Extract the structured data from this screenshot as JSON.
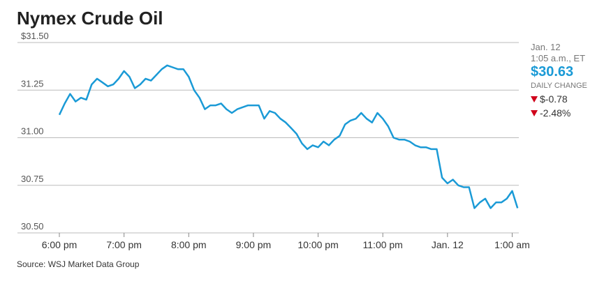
{
  "chart_data": {
    "type": "line",
    "title": "Nymex Crude Oil",
    "source": "Source: WSJ Market Data Group",
    "x": [
      "6:00 pm",
      "6:05 pm",
      "6:10 pm",
      "6:15 pm",
      "6:20 pm",
      "6:25 pm",
      "6:30 pm",
      "6:35 pm",
      "6:40 pm",
      "6:45 pm",
      "6:50 pm",
      "6:55 pm",
      "7:00 pm",
      "7:05 pm",
      "7:10 pm",
      "7:15 pm",
      "7:20 pm",
      "7:25 pm",
      "7:30 pm",
      "7:35 pm",
      "7:40 pm",
      "7:45 pm",
      "7:50 pm",
      "7:55 pm",
      "8:00 pm",
      "8:05 pm",
      "8:10 pm",
      "8:15 pm",
      "8:20 pm",
      "8:25 pm",
      "8:30 pm",
      "8:35 pm",
      "8:40 pm",
      "8:45 pm",
      "8:50 pm",
      "8:55 pm",
      "9:00 pm",
      "9:05 pm",
      "9:10 pm",
      "9:15 pm",
      "9:20 pm",
      "9:25 pm",
      "9:30 pm",
      "9:35 pm",
      "9:40 pm",
      "9:45 pm",
      "9:50 pm",
      "9:55 pm",
      "10:00 pm",
      "10:05 pm",
      "10:10 pm",
      "10:15 pm",
      "10:20 pm",
      "10:25 pm",
      "10:30 pm",
      "10:35 pm",
      "10:40 pm",
      "10:45 pm",
      "10:50 pm",
      "10:55 pm",
      "11:00 pm",
      "11:05 pm",
      "11:10 pm",
      "11:15 pm",
      "11:20 pm",
      "11:25 pm",
      "11:30 pm",
      "11:35 pm",
      "11:40 pm",
      "11:45 pm",
      "11:50 pm",
      "11:55 pm",
      "12:00 am",
      "12:05 am",
      "12:10 am",
      "12:15 am",
      "12:20 am",
      "12:25 am",
      "12:30 am",
      "12:35 am",
      "12:40 am",
      "12:45 am",
      "12:50 am",
      "12:55 am",
      "1:00 am",
      "1:05 am"
    ],
    "values": [
      31.12,
      31.18,
      31.23,
      31.19,
      31.21,
      31.2,
      31.28,
      31.31,
      31.29,
      31.27,
      31.28,
      31.31,
      31.35,
      31.32,
      31.26,
      31.28,
      31.31,
      31.3,
      31.33,
      31.36,
      31.38,
      31.37,
      31.36,
      31.36,
      31.32,
      31.25,
      31.21,
      31.15,
      31.17,
      31.17,
      31.18,
      31.15,
      31.13,
      31.15,
      31.16,
      31.17,
      31.17,
      31.17,
      31.1,
      31.14,
      31.13,
      31.1,
      31.08,
      31.05,
      31.02,
      30.97,
      30.94,
      30.96,
      30.95,
      30.98,
      30.96,
      30.99,
      31.01,
      31.07,
      31.09,
      31.1,
      31.13,
      31.1,
      31.08,
      31.13,
      31.1,
      31.06,
      31.0,
      30.99,
      30.99,
      30.98,
      30.96,
      30.95,
      30.95,
      30.94,
      30.94,
      30.79,
      30.76,
      30.78,
      30.75,
      30.74,
      30.74,
      30.63,
      30.66,
      30.68,
      30.63,
      30.66,
      30.66,
      30.68,
      30.72,
      30.63
    ],
    "color": "#1a9ad6",
    "ylim": [
      30.5,
      31.5
    ],
    "yticks": [
      {
        "value": 30.5,
        "label": "30.50"
      },
      30.75,
      {
        "value": 31,
        "label": "31.00"
      },
      31.25,
      {
        "value": 31.5,
        "label": "$31.50"
      }
    ],
    "xticks": [
      "6:00 pm",
      "7:00 pm",
      "8:00 pm",
      "9:00 pm",
      "10:00 pm",
      "11:00 pm",
      {
        "value": "12:00 am",
        "label": "Jan. 12"
      },
      "1:00 am"
    ],
    "grid": true,
    "quote": {
      "date": "Jan. 12",
      "time": "1:05 a.m., ET",
      "price": "$30.63",
      "change_label": "DAILY CHANGE",
      "change": "$-0.78",
      "change_pct": "-2.48%"
    }
  }
}
